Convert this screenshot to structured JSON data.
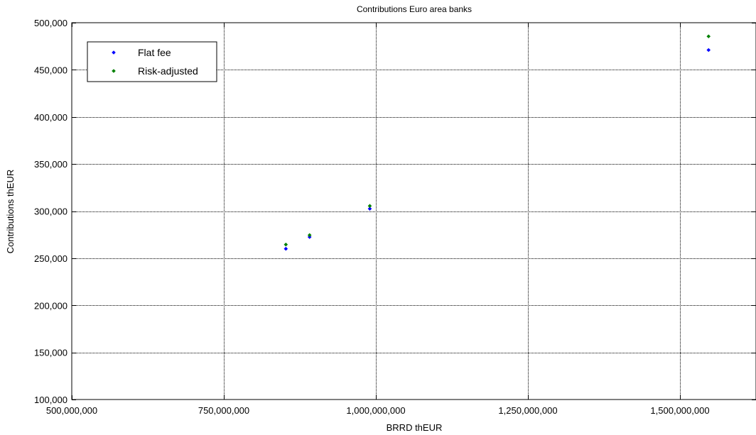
{
  "chart_data": {
    "type": "scatter",
    "title": "Contributions Euro area banks",
    "xlabel": "BRRD thEUR",
    "ylabel": "Contributions thEUR",
    "xlim": [
      500000000,
      1625000000
    ],
    "ylim": [
      100000,
      500000
    ],
    "x_ticks": [
      500000000,
      750000000,
      1000000000,
      1250000000,
      1500000000
    ],
    "x_tick_labels": [
      "500,000,000",
      "750,000,000",
      "1,000,000,000",
      "1,250,000,000",
      "1,500,000,000"
    ],
    "y_ticks": [
      100000,
      150000,
      200000,
      250000,
      300000,
      350000,
      400000,
      450000,
      500000
    ],
    "y_tick_labels": [
      "100,000",
      "150,000",
      "200,000",
      "250,000",
      "300,000",
      "350,000",
      "400,000",
      "450,000",
      "500,000"
    ],
    "grid": true,
    "legend_position": "top-left",
    "series": [
      {
        "name": "Flat fee",
        "color": "#0000ff",
        "marker": "diamond",
        "points": [
          {
            "x": 852000000,
            "y": 260000
          },
          {
            "x": 891000000,
            "y": 272500
          },
          {
            "x": 990000000,
            "y": 302500
          },
          {
            "x": 1547000000,
            "y": 471000
          }
        ]
      },
      {
        "name": "Risk-adjusted",
        "color": "#008000",
        "marker": "diamond",
        "points": [
          {
            "x": 852000000,
            "y": 264500
          },
          {
            "x": 891000000,
            "y": 274500
          },
          {
            "x": 990000000,
            "y": 305500
          },
          {
            "x": 1547000000,
            "y": 485500
          }
        ]
      }
    ]
  }
}
